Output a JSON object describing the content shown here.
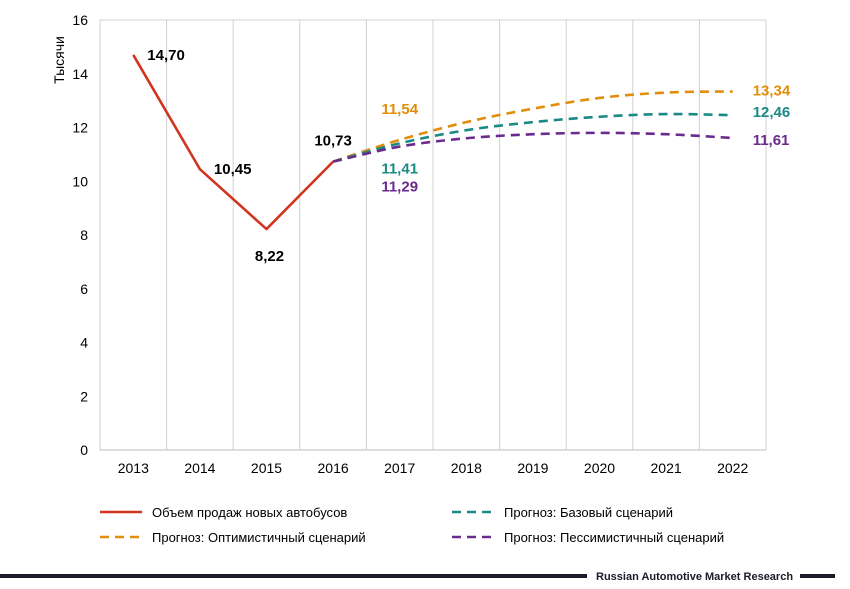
{
  "chart_data": {
    "type": "line",
    "ylabel": "Тысячи",
    "ylim": [
      0,
      16
    ],
    "yticks": [
      0,
      2,
      4,
      6,
      8,
      10,
      12,
      14,
      16
    ],
    "categories": [
      "2013",
      "2014",
      "2015",
      "2016",
      "2017",
      "2018",
      "2019",
      "2020",
      "2021",
      "2022"
    ],
    "grid": "vertical",
    "legend_position": "bottom",
    "series": [
      {
        "name": "Объем продаж новых автобусов",
        "color": "#d0361f",
        "style": "solid",
        "x": [
          "2013",
          "2014",
          "2015",
          "2016"
        ],
        "values": [
          14.7,
          10.45,
          8.22,
          10.73
        ],
        "labels": [
          "14,70",
          "10,45",
          "8,22",
          "10,73"
        ]
      },
      {
        "name": "Прогноз: Оптимистичный сценарий",
        "color": "#e08e0b",
        "style": "dashed",
        "x": [
          "2016",
          "2017",
          "2018",
          "2019",
          "2020",
          "2021",
          "2022"
        ],
        "values": [
          10.73,
          11.54,
          12.2,
          12.7,
          13.1,
          13.3,
          13.34
        ],
        "labels": [
          "11,54",
          "13,34"
        ]
      },
      {
        "name": "Прогноз: Базовый сценарий",
        "color": "#1a8a84",
        "style": "dashed",
        "x": [
          "2016",
          "2017",
          "2018",
          "2019",
          "2020",
          "2021",
          "2022"
        ],
        "values": [
          10.73,
          11.41,
          11.9,
          12.2,
          12.4,
          12.5,
          12.46
        ],
        "labels": [
          "11,41",
          "12,46"
        ]
      },
      {
        "name": "Прогноз: Пессимистичный сценарий",
        "color": "#6a2a8e",
        "style": "dashed",
        "x": [
          "2016",
          "2017",
          "2018",
          "2019",
          "2020",
          "2021",
          "2022"
        ],
        "values": [
          10.73,
          11.29,
          11.6,
          11.75,
          11.8,
          11.75,
          11.61
        ],
        "labels": [
          "11,29",
          "11,61"
        ]
      }
    ]
  },
  "footer": {
    "source": "Russian Automotive Market Research"
  }
}
